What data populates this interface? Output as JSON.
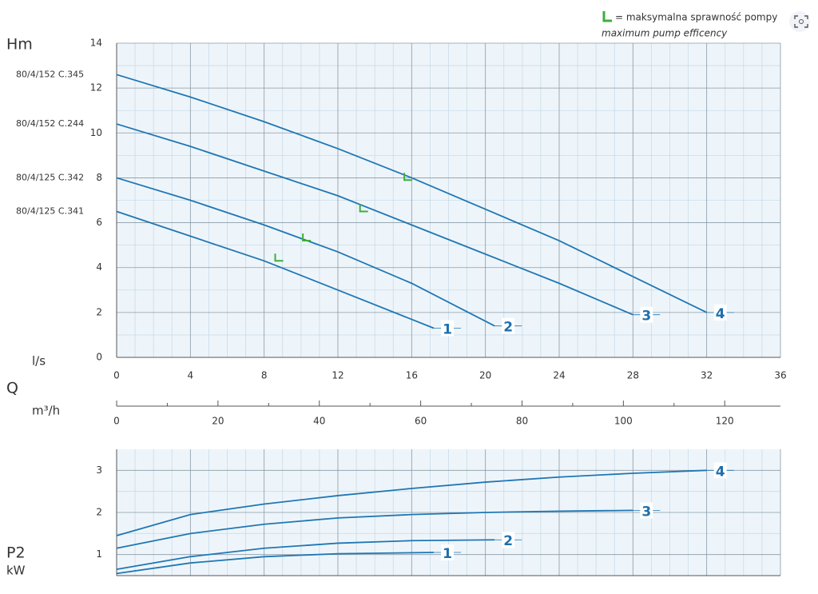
{
  "chart_data": [
    {
      "type": "line",
      "ylabel": "Hm",
      "xlabel": "l/s",
      "quantity_label": "Q",
      "xlim": [
        0,
        36
      ],
      "xticks": [
        0,
        4,
        8,
        12,
        16,
        20,
        24,
        28,
        32,
        36
      ],
      "ylim": [
        0,
        14
      ],
      "yticks": [
        0,
        2,
        4,
        6,
        8,
        10,
        12,
        14
      ],
      "grid": true,
      "x2label": "m³/h",
      "x2lim": [
        0,
        131
      ],
      "x2ticks": [
        0,
        20,
        40,
        60,
        80,
        100,
        120
      ],
      "series": [
        {
          "name": "1",
          "model": "80/4/125 C.341",
          "color": "#1f77b4",
          "x": [
            0,
            4,
            8,
            12,
            17.2
          ],
          "values": [
            6.5,
            5.4,
            4.3,
            3.0,
            1.3
          ]
        },
        {
          "name": "2",
          "model": "80/4/125 C.342",
          "color": "#1f77b4",
          "x": [
            0,
            4,
            8,
            12,
            16,
            20.5
          ],
          "values": [
            8.0,
            7.0,
            5.9,
            4.7,
            3.3,
            1.4
          ]
        },
        {
          "name": "3",
          "model": "80/4/152 C.244",
          "color": "#1f77b4",
          "x": [
            0,
            4,
            8,
            12,
            16,
            20,
            24,
            28
          ],
          "values": [
            10.4,
            9.4,
            8.3,
            7.2,
            5.9,
            4.6,
            3.3,
            1.9
          ]
        },
        {
          "name": "4",
          "model": "80/4/152 C.345",
          "color": "#1f77b4",
          "x": [
            0,
            4,
            8,
            12,
            16,
            20,
            24,
            28,
            32
          ],
          "values": [
            12.6,
            11.6,
            10.5,
            9.3,
            8.0,
            6.6,
            5.2,
            3.6,
            2.0
          ]
        }
      ],
      "efficiency": {
        "color": "#3cae3c",
        "x": [
          8.6,
          10.1,
          13.2,
          15.6
        ],
        "values": [
          4.3,
          5.2,
          6.5,
          7.9
        ],
        "note": "= maksymalna sprawność pompy",
        "note_en": "maximum pump efficency"
      }
    },
    {
      "type": "line",
      "ylabel": "P2",
      "yunit": "kW",
      "xlim": [
        0,
        36
      ],
      "xticks": [
        0,
        4,
        8,
        12,
        16,
        20,
        24,
        28,
        32,
        36
      ],
      "ylim": [
        0.5,
        3.5
      ],
      "yticks": [
        1,
        2,
        3
      ],
      "grid": true,
      "series": [
        {
          "name": "1",
          "color": "#1f77b4",
          "x": [
            0,
            4,
            8,
            12,
            17.2
          ],
          "values": [
            0.55,
            0.8,
            0.95,
            1.02,
            1.05
          ]
        },
        {
          "name": "2",
          "color": "#1f77b4",
          "x": [
            0,
            4,
            8,
            12,
            16,
            20.5
          ],
          "values": [
            0.65,
            0.95,
            1.15,
            1.27,
            1.33,
            1.35
          ]
        },
        {
          "name": "3",
          "color": "#1f77b4",
          "x": [
            0,
            4,
            8,
            12,
            16,
            20,
            24,
            28
          ],
          "values": [
            1.15,
            1.5,
            1.72,
            1.87,
            1.95,
            2.0,
            2.03,
            2.05
          ]
        },
        {
          "name": "4",
          "color": "#1f77b4",
          "x": [
            0,
            4,
            8,
            12,
            16,
            20,
            24,
            28,
            32
          ],
          "values": [
            1.45,
            1.95,
            2.2,
            2.4,
            2.57,
            2.72,
            2.84,
            2.93,
            3.0
          ]
        }
      ]
    }
  ]
}
